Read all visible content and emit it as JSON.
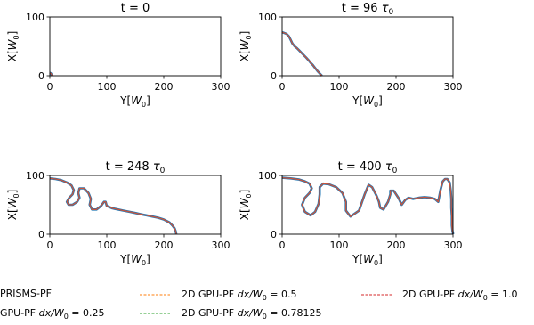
{
  "figure": {
    "xlabel_main": "Y[",
    "xlabel_unit": "W",
    "xlabel_sub": "0",
    "xlabel_close": "]",
    "ylabel_main": "X[",
    "ylabel_unit": "W",
    "ylabel_sub": "0",
    "ylabel_close": "]"
  },
  "legend": {
    "placement": "bottom",
    "entries": [
      {
        "id": "prisms",
        "label": "PRISMS-PF",
        "color": "#1f77b4",
        "style": "solid"
      },
      {
        "id": "gpu025",
        "label_prefix": "GPU-PF ",
        "label_math": "dx/W",
        "label_sub": "0",
        "label_value": " = 0.25",
        "color": "#d62728",
        "style": "dotted"
      },
      {
        "id": "gpu05",
        "label_prefix": "2D GPU-PF ",
        "label_math": "dx/W",
        "label_sub": "0",
        "label_value": " = 0.5",
        "color": "#ff7f0e",
        "style": "dashed"
      },
      {
        "id": "gpu078",
        "label_prefix": "2D GPU-PF ",
        "label_math": "dx/W",
        "label_sub": "0",
        "label_value": " = 0.78125",
        "color": "#2ca02c",
        "style": "dashed"
      },
      {
        "id": "gpu10",
        "label_prefix": "2D GPU-PF ",
        "label_math": "dx/W",
        "label_sub": "0",
        "label_value": " = 1.0",
        "color": "#d62728",
        "style": "dashed"
      }
    ]
  },
  "chart_data": [
    {
      "type": "line",
      "title_text": "t = 0",
      "title_tau": "",
      "xlim": [
        0,
        300
      ],
      "ylim": [
        0,
        100
      ],
      "xticks": [
        "0",
        "100",
        "200",
        "300"
      ],
      "yticks": [
        "0",
        "100"
      ],
      "x": [
        0,
        2,
        3,
        4
      ],
      "y": [
        5,
        4,
        2,
        0
      ]
    },
    {
      "type": "line",
      "title_text": "t = 96 ",
      "title_tau": "τ",
      "xlim": [
        0,
        300
      ],
      "ylim": [
        0,
        100
      ],
      "xticks": [
        "0",
        "100",
        "200",
        "300"
      ],
      "yticks": [
        "0",
        "100"
      ],
      "x": [
        0,
        3,
        8,
        12,
        15,
        18,
        22,
        26,
        30,
        34,
        38,
        42,
        46,
        50,
        54,
        58,
        62,
        66,
        70
      ],
      "y": [
        74,
        73,
        71,
        67,
        61,
        55,
        50,
        47,
        43,
        39,
        35,
        31,
        27,
        22,
        18,
        13,
        8,
        4,
        0
      ]
    },
    {
      "type": "line",
      "title_text": "t = 248 ",
      "title_tau": "τ",
      "xlim": [
        0,
        300
      ],
      "ylim": [
        0,
        100
      ],
      "xticks": [
        "0",
        "100",
        "200",
        "300"
      ],
      "yticks": [
        "0",
        "100"
      ],
      "x": [
        0,
        10,
        20,
        30,
        38,
        42,
        40,
        34,
        30,
        33,
        40,
        48,
        52,
        50,
        52,
        60,
        68,
        72,
        70,
        74,
        82,
        90,
        95,
        98,
        100,
        110,
        120,
        130,
        140,
        150,
        160,
        170,
        180,
        190,
        200,
        210,
        215,
        219,
        221,
        222
      ],
      "y": [
        95,
        94,
        92,
        88,
        83,
        75,
        68,
        62,
        55,
        50,
        50,
        55,
        62,
        70,
        78,
        78,
        70,
        60,
        50,
        42,
        42,
        48,
        55,
        55,
        48,
        44,
        42,
        40,
        38,
        36,
        34,
        32,
        30,
        28,
        25,
        20,
        15,
        10,
        5,
        0
      ]
    },
    {
      "type": "line",
      "title_text": "t = 400 ",
      "title_tau": "τ",
      "xlim": [
        0,
        300
      ],
      "ylim": [
        0,
        100
      ],
      "xticks": [
        "0",
        "100",
        "200",
        "300"
      ],
      "yticks": [
        "0",
        "100"
      ],
      "x": [
        0,
        15,
        30,
        40,
        48,
        52,
        48,
        40,
        35,
        40,
        50,
        58,
        64,
        66,
        66,
        72,
        82,
        95,
        106,
        112,
        112,
        120,
        135,
        145,
        150,
        152,
        158,
        166,
        170,
        172,
        178,
        186,
        190,
        190,
        196,
        204,
        210,
        216,
        222,
        230,
        240,
        250,
        260,
        268,
        274,
        278,
        282,
        286,
        290,
        294,
        296,
        297,
        297,
        298,
        298,
        299,
        300,
        300
      ],
      "y": [
        96,
        95,
        93,
        90,
        86,
        78,
        70,
        62,
        50,
        38,
        32,
        38,
        52,
        68,
        80,
        86,
        85,
        80,
        70,
        55,
        40,
        30,
        40,
        68,
        80,
        84,
        80,
        65,
        55,
        45,
        42,
        55,
        68,
        74,
        74,
        62,
        50,
        58,
        62,
        60,
        62,
        63,
        62,
        60,
        55,
        75,
        90,
        94,
        94,
        88,
        75,
        60,
        45,
        30,
        15,
        5,
        2,
        0
      ]
    }
  ]
}
